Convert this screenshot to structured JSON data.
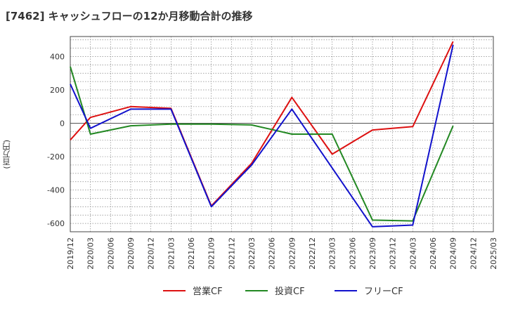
{
  "chart_data": {
    "type": "line",
    "title": "[7462]  キャッシュフローの12か月移動合計の推移",
    "ylabel": "(百万円)",
    "xlabel": "",
    "ylim": [
      -650,
      520
    ],
    "yticks": [
      400,
      200,
      0,
      -200,
      -400,
      -600
    ],
    "categories": [
      "2019/12",
      "2020/03",
      "2020/06",
      "2020/09",
      "2020/12",
      "2021/03",
      "2021/06",
      "2021/09",
      "2021/12",
      "2022/03",
      "2022/06",
      "2022/09",
      "2022/12",
      "2023/03",
      "2023/06",
      "2023/09",
      "2023/12",
      "2024/03",
      "2024/06",
      "2024/09",
      "2024/12",
      "2025/03"
    ],
    "grid": true,
    "legend_position": "bottom",
    "series": [
      {
        "name": "営業CF",
        "color": "#dd1111",
        "values": [
          -100,
          35,
          null,
          100,
          null,
          90,
          null,
          -495,
          null,
          -240,
          null,
          155,
          null,
          -185,
          null,
          -40,
          null,
          -20,
          null,
          490,
          null,
          null
        ]
      },
      {
        "name": "投資CF",
        "color": "#228822",
        "values": [
          340,
          -65,
          null,
          -15,
          null,
          -5,
          null,
          -5,
          null,
          -10,
          null,
          -65,
          null,
          -65,
          null,
          -580,
          null,
          -585,
          null,
          -15,
          null,
          null
        ]
      },
      {
        "name": "フリーCF",
        "color": "#1111cc",
        "values": [
          235,
          -30,
          null,
          85,
          null,
          85,
          null,
          -500,
          null,
          -250,
          null,
          85,
          null,
          null,
          null,
          -620,
          null,
          -610,
          null,
          470,
          null,
          null
        ]
      }
    ]
  }
}
